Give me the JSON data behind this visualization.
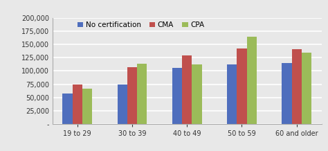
{
  "categories": [
    "19 to 29",
    "30 to 39",
    "40 to 49",
    "50 to 59",
    "60 and older"
  ],
  "series": {
    "No certification": [
      58000,
      75000,
      106000,
      113000,
      115000
    ],
    "CMA": [
      75000,
      107000,
      129000,
      142000,
      141000
    ],
    "CPA": [
      67000,
      114000,
      112000,
      165000,
      135000
    ]
  },
  "bar_colors": {
    "No certification": "#4F6EBD",
    "CMA": "#C0504D",
    "CPA": "#9BBB59"
  },
  "legend_labels": [
    "No certification",
    "CMA",
    "CPA"
  ],
  "ylim": [
    0,
    200000
  ],
  "yticks": [
    0,
    25000,
    50000,
    75000,
    100000,
    125000,
    150000,
    175000,
    200000
  ],
  "background_color": "#E8E8E8",
  "plot_bg_color": "#E8E8E8",
  "grid_color": "#FFFFFF",
  "bar_width": 0.18,
  "tick_fontsize": 7.0,
  "legend_fontsize": 7.5
}
